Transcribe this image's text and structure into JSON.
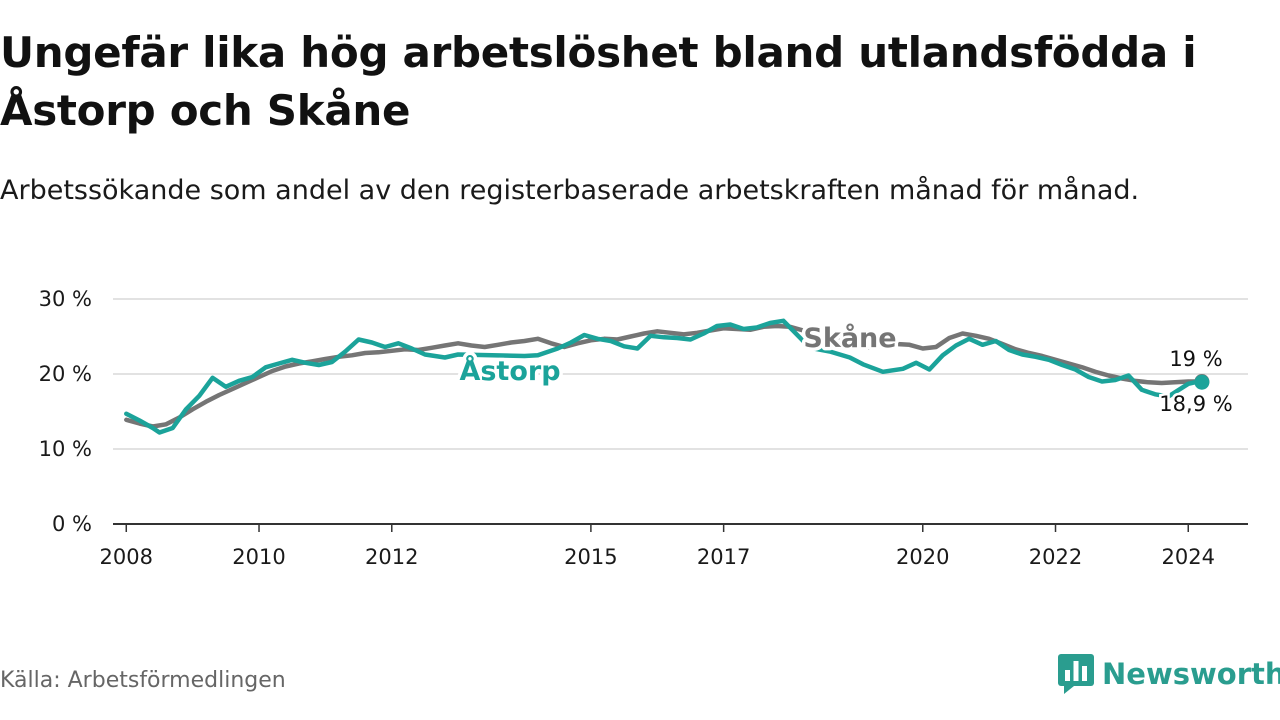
{
  "title": "Ungefär lika hög arbetslöshet bland utlandsfödda i Åstorp och Skåne",
  "subtitle": "Arbetssökande som andel av den registerbaserade arbetskraften månad för månad.",
  "source": "Källa: Arbetsförmedlingen",
  "brand": {
    "name": "Newsworthy",
    "icon": "bar-chart-icon",
    "color": "#2a9d8f"
  },
  "chart_data": {
    "type": "line",
    "xlim": [
      2007.8,
      2024.9
    ],
    "ylim": [
      0,
      30
    ],
    "grid": true,
    "y_ticks": [
      {
        "value": 0,
        "label": "0 %"
      },
      {
        "value": 10,
        "label": "10 %"
      },
      {
        "value": 20,
        "label": "20 %"
      },
      {
        "value": 30,
        "label": "30 %"
      }
    ],
    "x_ticks": [
      {
        "value": 2008,
        "label": "2008"
      },
      {
        "value": 2010,
        "label": "2010"
      },
      {
        "value": 2012,
        "label": "2012"
      },
      {
        "value": 2015,
        "label": "2015"
      },
      {
        "value": 2017,
        "label": "2017"
      },
      {
        "value": 2020,
        "label": "2020"
      },
      {
        "value": 2022,
        "label": "2022"
      },
      {
        "value": 2024,
        "label": "2024"
      }
    ],
    "series": [
      {
        "name": "Skåne",
        "color": "#757575",
        "end_label": "19 %",
        "points": [
          [
            2008.0,
            13.9
          ],
          [
            2008.2,
            13.4
          ],
          [
            2008.4,
            13.0
          ],
          [
            2008.6,
            13.3
          ],
          [
            2008.8,
            14.2
          ],
          [
            2009.0,
            15.3
          ],
          [
            2009.2,
            16.3
          ],
          [
            2009.4,
            17.2
          ],
          [
            2009.6,
            18.0
          ],
          [
            2009.8,
            18.8
          ],
          [
            2010.0,
            19.6
          ],
          [
            2010.2,
            20.4
          ],
          [
            2010.4,
            21.0
          ],
          [
            2010.6,
            21.4
          ],
          [
            2010.8,
            21.7
          ],
          [
            2011.0,
            22.0
          ],
          [
            2011.2,
            22.3
          ],
          [
            2011.4,
            22.5
          ],
          [
            2011.6,
            22.8
          ],
          [
            2011.8,
            22.9
          ],
          [
            2012.0,
            23.1
          ],
          [
            2012.2,
            23.3
          ],
          [
            2012.4,
            23.2
          ],
          [
            2012.6,
            23.5
          ],
          [
            2012.8,
            23.8
          ],
          [
            2013.0,
            24.1
          ],
          [
            2013.2,
            23.8
          ],
          [
            2013.4,
            23.6
          ],
          [
            2013.6,
            23.9
          ],
          [
            2013.8,
            24.2
          ],
          [
            2014.0,
            24.4
          ],
          [
            2014.2,
            24.7
          ],
          [
            2014.4,
            24.1
          ],
          [
            2014.6,
            23.6
          ],
          [
            2014.8,
            24.1
          ],
          [
            2015.0,
            24.5
          ],
          [
            2015.2,
            24.7
          ],
          [
            2015.4,
            24.6
          ],
          [
            2015.6,
            25.0
          ],
          [
            2015.8,
            25.4
          ],
          [
            2016.0,
            25.7
          ],
          [
            2016.2,
            25.5
          ],
          [
            2016.4,
            25.3
          ],
          [
            2016.6,
            25.5
          ],
          [
            2016.8,
            25.8
          ],
          [
            2017.0,
            26.1
          ],
          [
            2017.2,
            26.0
          ],
          [
            2017.4,
            25.9
          ],
          [
            2017.6,
            26.3
          ],
          [
            2017.8,
            26.4
          ],
          [
            2018.0,
            26.3
          ],
          [
            2018.2,
            25.8
          ],
          [
            2018.4,
            25.3
          ],
          [
            2018.6,
            24.8
          ],
          [
            2018.8,
            24.3
          ],
          [
            2019.0,
            23.8
          ],
          [
            2019.2,
            23.5
          ],
          [
            2019.4,
            23.8
          ],
          [
            2019.6,
            24.0
          ],
          [
            2019.8,
            23.9
          ],
          [
            2020.0,
            23.4
          ],
          [
            2020.2,
            23.6
          ],
          [
            2020.4,
            24.8
          ],
          [
            2020.6,
            25.4
          ],
          [
            2020.8,
            25.1
          ],
          [
            2021.0,
            24.7
          ],
          [
            2021.2,
            24.0
          ],
          [
            2021.4,
            23.3
          ],
          [
            2021.6,
            22.8
          ],
          [
            2021.8,
            22.4
          ],
          [
            2022.0,
            21.9
          ],
          [
            2022.2,
            21.4
          ],
          [
            2022.4,
            20.9
          ],
          [
            2022.6,
            20.3
          ],
          [
            2022.8,
            19.8
          ],
          [
            2023.0,
            19.4
          ],
          [
            2023.2,
            19.1
          ],
          [
            2023.4,
            18.9
          ],
          [
            2023.6,
            18.8
          ],
          [
            2023.8,
            18.9
          ],
          [
            2024.0,
            19.0
          ],
          [
            2024.1,
            19.0
          ]
        ]
      },
      {
        "name": "Åstorp",
        "color": "#1ba39a",
        "end_label": "18,9 %",
        "points": [
          [
            2008.0,
            14.7
          ],
          [
            2008.2,
            13.8
          ],
          [
            2008.4,
            12.8
          ],
          [
            2008.5,
            12.2
          ],
          [
            2008.7,
            12.8
          ],
          [
            2008.9,
            15.3
          ],
          [
            2009.1,
            17.1
          ],
          [
            2009.3,
            19.5
          ],
          [
            2009.5,
            18.3
          ],
          [
            2009.7,
            19.1
          ],
          [
            2009.9,
            19.6
          ],
          [
            2010.1,
            20.9
          ],
          [
            2010.3,
            21.4
          ],
          [
            2010.5,
            21.9
          ],
          [
            2010.7,
            21.5
          ],
          [
            2010.9,
            21.2
          ],
          [
            2011.1,
            21.6
          ],
          [
            2011.3,
            23.0
          ],
          [
            2011.5,
            24.6
          ],
          [
            2011.7,
            24.2
          ],
          [
            2011.9,
            23.6
          ],
          [
            2012.1,
            24.1
          ],
          [
            2012.3,
            23.4
          ],
          [
            2012.5,
            22.6
          ],
          [
            2012.8,
            22.2
          ],
          [
            2013.0,
            22.6
          ],
          [
            2014.0,
            22.4
          ],
          [
            2014.2,
            22.5
          ],
          [
            2014.5,
            23.4
          ],
          [
            2014.7,
            24.2
          ],
          [
            2014.9,
            25.2
          ],
          [
            2015.1,
            24.7
          ],
          [
            2015.3,
            24.4
          ],
          [
            2015.5,
            23.7
          ],
          [
            2015.7,
            23.4
          ],
          [
            2015.9,
            25.1
          ],
          [
            2016.1,
            24.9
          ],
          [
            2016.3,
            24.8
          ],
          [
            2016.5,
            24.6
          ],
          [
            2016.7,
            25.4
          ],
          [
            2016.9,
            26.4
          ],
          [
            2017.1,
            26.6
          ],
          [
            2017.3,
            26.0
          ],
          [
            2017.5,
            26.2
          ],
          [
            2017.7,
            26.8
          ],
          [
            2017.9,
            27.1
          ],
          [
            2018.3,
            23.5
          ],
          [
            2018.6,
            23.0
          ],
          [
            2018.9,
            22.2
          ],
          [
            2019.1,
            21.3
          ],
          [
            2019.4,
            20.3
          ],
          [
            2019.7,
            20.7
          ],
          [
            2019.9,
            21.5
          ],
          [
            2020.1,
            20.6
          ],
          [
            2020.3,
            22.5
          ],
          [
            2020.5,
            23.8
          ],
          [
            2020.7,
            24.7
          ],
          [
            2020.9,
            23.9
          ],
          [
            2021.1,
            24.4
          ],
          [
            2021.3,
            23.2
          ],
          [
            2021.5,
            22.6
          ],
          [
            2021.7,
            22.3
          ],
          [
            2021.9,
            21.9
          ],
          [
            2022.1,
            21.2
          ],
          [
            2022.3,
            20.6
          ],
          [
            2022.5,
            19.6
          ],
          [
            2022.7,
            19.0
          ],
          [
            2022.9,
            19.2
          ],
          [
            2023.1,
            19.8
          ],
          [
            2023.3,
            17.9
          ],
          [
            2023.5,
            17.3
          ],
          [
            2023.7,
            17.0
          ],
          [
            2024.0,
            18.7
          ],
          [
            2024.1,
            18.9
          ]
        ]
      }
    ]
  }
}
